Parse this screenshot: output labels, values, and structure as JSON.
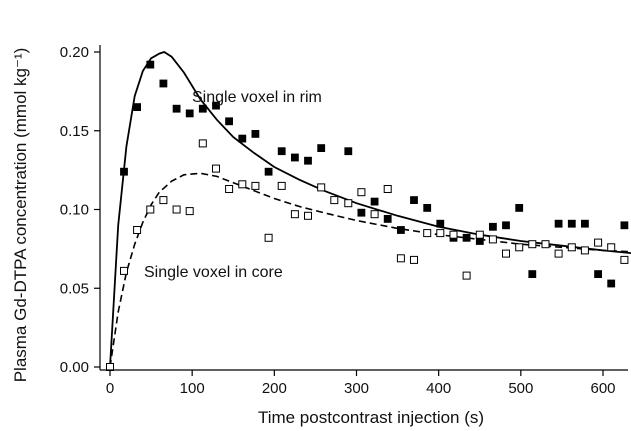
{
  "chart_data": {
    "type": "scatter",
    "title": "",
    "xlabel": "Time postcontrast injection (s)",
    "ylabel": "Plasma Gd-DTPA concentration (mmol kg⁻¹)",
    "xlim": [
      0,
      650
    ],
    "ylim": [
      0,
      0.225
    ],
    "x_ticks": [
      0,
      100,
      200,
      300,
      400,
      500,
      600
    ],
    "x_tick_labels": [
      "0",
      "100",
      "200",
      "300",
      "400",
      "500",
      "600"
    ],
    "y_ticks": [
      0,
      0.05,
      0.1,
      0.15,
      0.2
    ],
    "y_tick_labels": [
      "0.00",
      "0.05",
      "0.10",
      "0.15",
      "0.20"
    ],
    "grid": false,
    "series": [
      {
        "name": "Single voxel in rim",
        "marker": "filled-square",
        "points": [
          [
            0,
            0.0
          ],
          [
            17,
            0.124
          ],
          [
            33,
            0.165
          ],
          [
            49,
            0.192
          ],
          [
            65,
            0.18
          ],
          [
            81,
            0.164
          ],
          [
            97,
            0.161
          ],
          [
            113,
            0.164
          ],
          [
            129,
            0.166
          ],
          [
            145,
            0.156
          ],
          [
            161,
            0.145
          ],
          [
            177,
            0.148
          ],
          [
            193,
            0.124
          ],
          [
            209,
            0.137
          ],
          [
            225,
            0.133
          ],
          [
            241,
            0.131
          ],
          [
            257,
            0.139
          ],
          [
            290,
            0.137
          ],
          [
            306,
            0.098
          ],
          [
            322,
            0.105
          ],
          [
            338,
            0.094
          ],
          [
            354,
            0.087
          ],
          [
            370,
            0.106
          ],
          [
            386,
            0.101
          ],
          [
            402,
            0.091
          ],
          [
            418,
            0.082
          ],
          [
            434,
            0.082
          ],
          [
            450,
            0.08
          ],
          [
            466,
            0.089
          ],
          [
            482,
            0.09
          ],
          [
            498,
            0.101
          ],
          [
            514,
            0.059
          ],
          [
            546,
            0.091
          ],
          [
            562,
            0.091
          ],
          [
            578,
            0.091
          ],
          [
            594,
            0.059
          ],
          [
            610,
            0.053
          ],
          [
            626,
            0.09
          ],
          [
            642,
            0.074
          ]
        ],
        "fit": [
          [
            0,
            0.0
          ],
          [
            10,
            0.09
          ],
          [
            20,
            0.14
          ],
          [
            30,
            0.172
          ],
          [
            40,
            0.188
          ],
          [
            50,
            0.196
          ],
          [
            60,
            0.199
          ],
          [
            66,
            0.2
          ],
          [
            75,
            0.197
          ],
          [
            90,
            0.187
          ],
          [
            110,
            0.17
          ],
          [
            130,
            0.157
          ],
          [
            150,
            0.146
          ],
          [
            175,
            0.136
          ],
          [
            200,
            0.127
          ],
          [
            230,
            0.119
          ],
          [
            260,
            0.112
          ],
          [
            300,
            0.104
          ],
          [
            350,
            0.096
          ],
          [
            400,
            0.089
          ],
          [
            450,
            0.084
          ],
          [
            500,
            0.08
          ],
          [
            550,
            0.077
          ],
          [
            600,
            0.074
          ],
          [
            640,
            0.072
          ]
        ],
        "fit_style": "solid",
        "label": "Single voxel in rim"
      },
      {
        "name": "Single voxel in core",
        "marker": "open-square",
        "points": [
          [
            0,
            0.0
          ],
          [
            17,
            0.061
          ],
          [
            33,
            0.087
          ],
          [
            49,
            0.1
          ],
          [
            65,
            0.106
          ],
          [
            81,
            0.1
          ],
          [
            97,
            0.099
          ],
          [
            113,
            0.142
          ],
          [
            129,
            0.126
          ],
          [
            145,
            0.113
          ],
          [
            161,
            0.116
          ],
          [
            177,
            0.115
          ],
          [
            193,
            0.082
          ],
          [
            209,
            0.115
          ],
          [
            225,
            0.097
          ],
          [
            241,
            0.096
          ],
          [
            257,
            0.114
          ],
          [
            273,
            0.106
          ],
          [
            290,
            0.104
          ],
          [
            306,
            0.111
          ],
          [
            322,
            0.097
          ],
          [
            338,
            0.113
          ],
          [
            354,
            0.069
          ],
          [
            370,
            0.068
          ],
          [
            386,
            0.085
          ],
          [
            402,
            0.085
          ],
          [
            418,
            0.084
          ],
          [
            434,
            0.058
          ],
          [
            450,
            0.084
          ],
          [
            466,
            0.081
          ],
          [
            482,
            0.072
          ],
          [
            498,
            0.076
          ],
          [
            514,
            0.078
          ],
          [
            530,
            0.078
          ],
          [
            546,
            0.072
          ],
          [
            562,
            0.076
          ],
          [
            578,
            0.074
          ],
          [
            594,
            0.079
          ],
          [
            610,
            0.076
          ],
          [
            626,
            0.068
          ],
          [
            642,
            0.076
          ]
        ],
        "fit": [
          [
            0,
            0.0
          ],
          [
            10,
            0.035
          ],
          [
            20,
            0.06
          ],
          [
            30,
            0.078
          ],
          [
            40,
            0.092
          ],
          [
            50,
            0.103
          ],
          [
            60,
            0.111
          ],
          [
            75,
            0.118
          ],
          [
            90,
            0.122
          ],
          [
            110,
            0.123
          ],
          [
            130,
            0.121
          ],
          [
            150,
            0.117
          ],
          [
            175,
            0.112
          ],
          [
            200,
            0.107
          ],
          [
            230,
            0.102
          ],
          [
            260,
            0.098
          ],
          [
            300,
            0.093
          ],
          [
            350,
            0.088
          ],
          [
            400,
            0.084
          ],
          [
            450,
            0.081
          ],
          [
            500,
            0.078
          ],
          [
            550,
            0.076
          ],
          [
            600,
            0.074
          ],
          [
            640,
            0.073
          ]
        ],
        "fit_style": "dashed",
        "label": "Single voxel in core"
      }
    ]
  }
}
